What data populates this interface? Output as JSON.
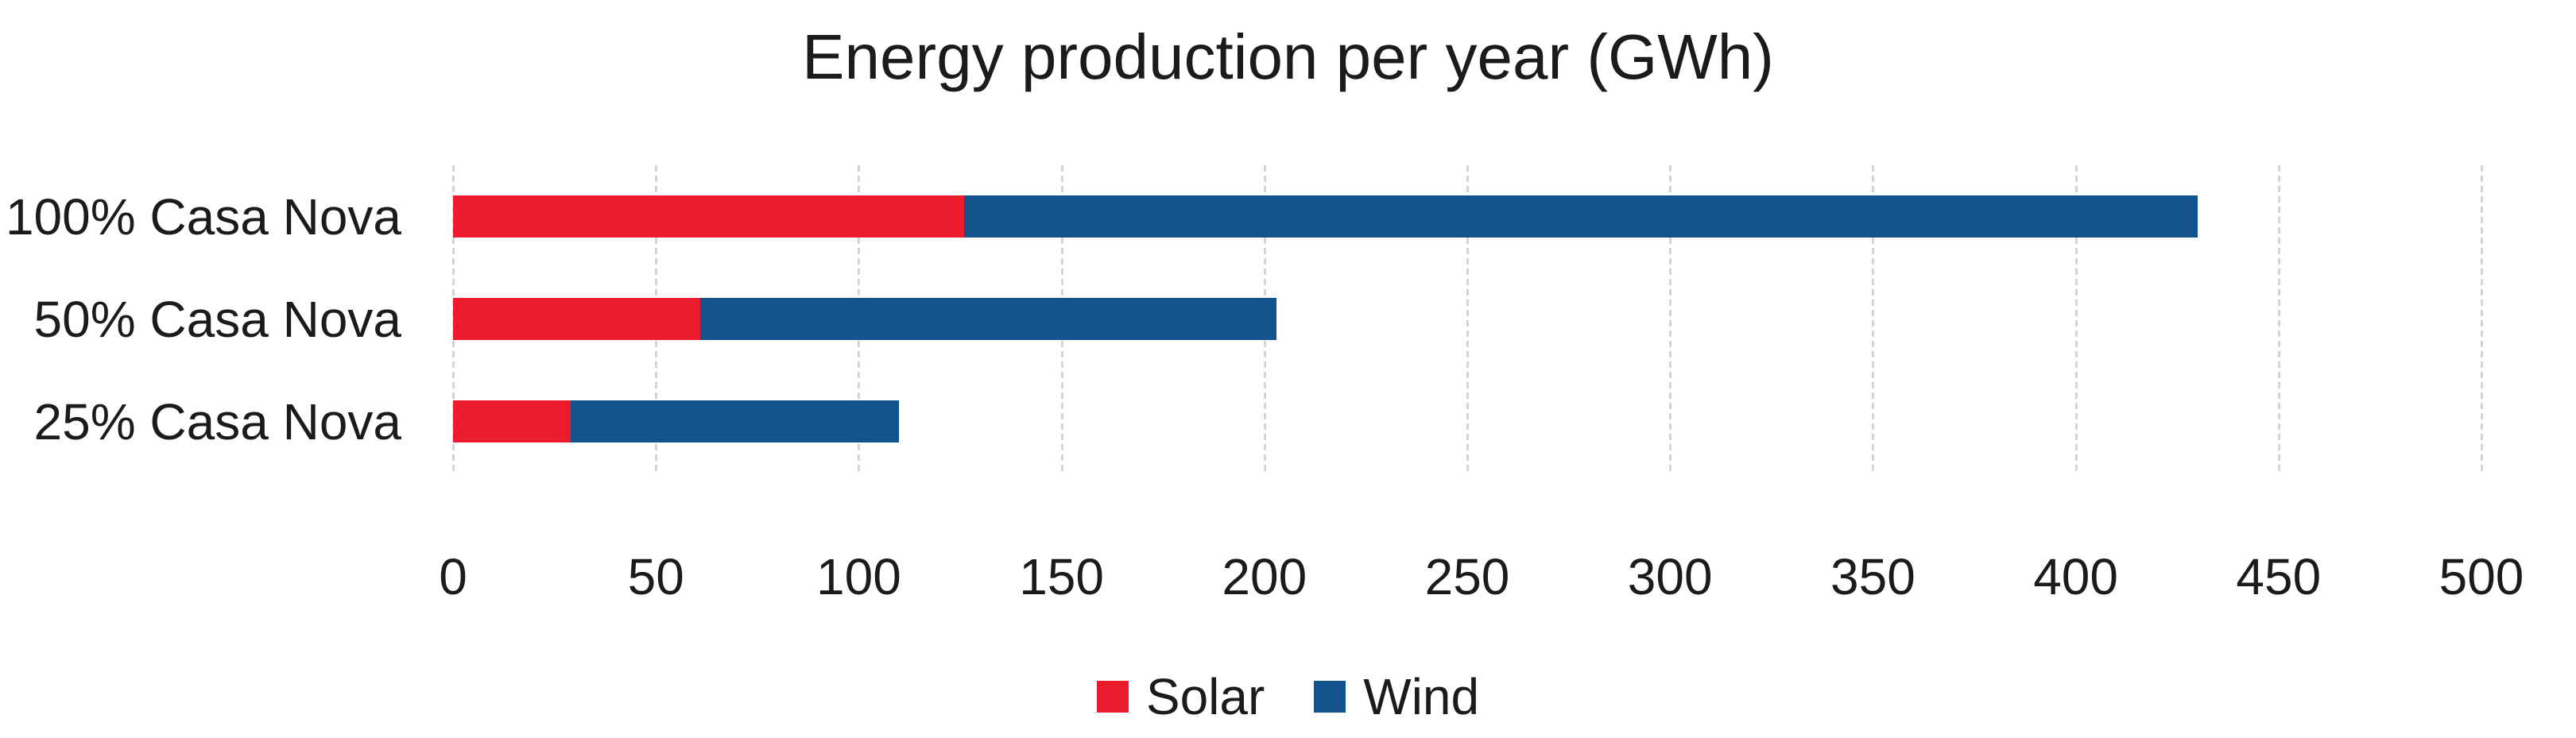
{
  "chart_data": {
    "type": "bar",
    "orientation": "horizontal",
    "stacked": true,
    "title": "Energy production per year (GWh)",
    "categories": [
      "100% Casa Nova",
      "50% Casa Nova",
      "25% Casa Nova"
    ],
    "series": [
      {
        "name": "Solar",
        "color": "#EC1C2E",
        "values": [
          126,
          61,
          29
        ]
      },
      {
        "name": "Wind",
        "color": "#12538E",
        "values": [
          304,
          142,
          81
        ]
      }
    ],
    "totals": [
      430,
      203,
      110
    ],
    "xlim": [
      0,
      500
    ],
    "x_ticks": [
      0,
      50,
      100,
      150,
      200,
      250,
      300,
      350,
      400,
      450,
      500
    ],
    "grid": "vertical-dashed",
    "gridline_color": "#D4D4D4",
    "legend_position": "bottom"
  }
}
